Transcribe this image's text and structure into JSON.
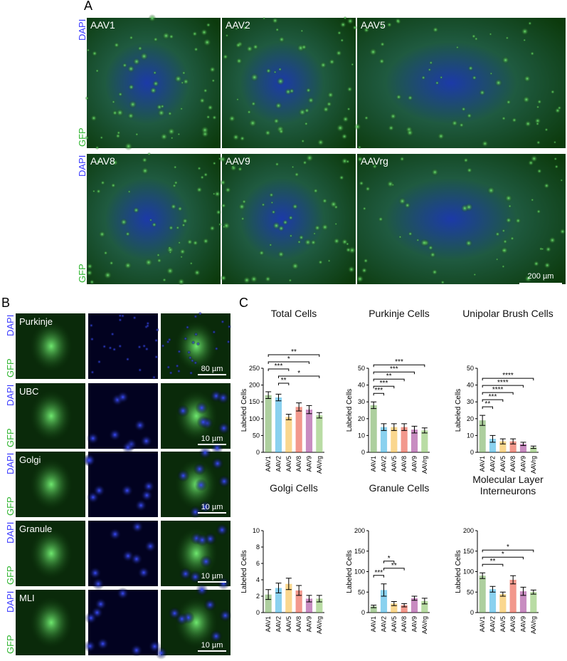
{
  "panel_labels": {
    "a": "A",
    "b": "B",
    "c": "C"
  },
  "panel_a": {
    "stain_labels": [
      "DAPI",
      "GFP"
    ],
    "images": [
      "AAV1",
      "AAV2",
      "AAV5",
      "AAV8",
      "AAV9",
      "AAVrg"
    ],
    "scale_bar": "200 µm"
  },
  "panel_b": {
    "stain_labels": [
      "DAPI",
      "GFP"
    ],
    "rows": [
      {
        "label": "Purkinje",
        "scale_bar": "80 µm"
      },
      {
        "label": "UBC",
        "scale_bar": "10 µm"
      },
      {
        "label": "Golgi",
        "scale_bar": "10 µm"
      },
      {
        "label": "Granule",
        "scale_bar": "10 µm"
      },
      {
        "label": "MLI",
        "scale_bar": "10 µm"
      }
    ]
  },
  "chart_data": [
    {
      "type": "bar",
      "title": "Total Cells",
      "y_label": "Labeled Cells",
      "categories": [
        "AAV1",
        "AAV2",
        "AAV5",
        "AAV8",
        "AAV9",
        "AAVrg"
      ],
      "colors": [
        "#6aa84f",
        "#29abe2",
        "#f5b731",
        "#e8432e",
        "#9b2d8e",
        "#7fbf5a"
      ],
      "values": [
        170,
        163,
        105,
        135,
        127,
        110
      ],
      "errors": [
        10,
        10,
        8,
        12,
        12,
        8
      ],
      "ylim": [
        0,
        250
      ],
      "yticks": [
        0,
        50,
        100,
        150,
        200,
        250
      ],
      "significance": [
        {
          "pair": [
            1,
            2
          ],
          "label": "**"
        },
        {
          "pair": [
            1,
            5
          ],
          "label": "*"
        },
        {
          "pair": [
            0,
            2
          ],
          "label": "***"
        },
        {
          "pair": [
            0,
            4
          ],
          "label": "*"
        },
        {
          "pair": [
            0,
            5
          ],
          "label": "**"
        }
      ]
    },
    {
      "type": "bar",
      "title": "Purkinje Cells",
      "y_label": "Labeled Cells",
      "categories": [
        "AAV1",
        "AAV2",
        "AAV5",
        "AAV8",
        "AAV9",
        "AAVrg"
      ],
      "colors": [
        "#6aa84f",
        "#29abe2",
        "#f5b731",
        "#e8432e",
        "#9b2d8e",
        "#7fbf5a"
      ],
      "values": [
        28,
        15,
        15,
        15,
        13.5,
        13
      ],
      "errors": [
        2,
        2,
        2,
        2,
        2,
        1.5
      ],
      "ylim": [
        0,
        50
      ],
      "yticks": [
        0,
        10,
        20,
        30,
        40,
        50
      ],
      "significance": [
        {
          "pair": [
            0,
            1
          ],
          "label": "***"
        },
        {
          "pair": [
            0,
            2
          ],
          "label": "***"
        },
        {
          "pair": [
            0,
            3
          ],
          "label": "**"
        },
        {
          "pair": [
            0,
            4
          ],
          "label": "***"
        },
        {
          "pair": [
            0,
            5
          ],
          "label": "***"
        }
      ]
    },
    {
      "type": "bar",
      "title": "Unipolar Brush Cells",
      "y_label": "Labeled Cells",
      "categories": [
        "AAV1",
        "AAV2",
        "AAV5",
        "AAV8",
        "AAV9",
        "AAVrg"
      ],
      "colors": [
        "#6aa84f",
        "#29abe2",
        "#f5b731",
        "#e8432e",
        "#9b2d8e",
        "#7fbf5a"
      ],
      "values": [
        19,
        8,
        6.5,
        6.5,
        5,
        3
      ],
      "errors": [
        3,
        2,
        1.5,
        1.5,
        1,
        0.7
      ],
      "ylim": [
        0,
        50
      ],
      "yticks": [
        0,
        10,
        20,
        30,
        40,
        50
      ],
      "significance": [
        {
          "pair": [
            0,
            1
          ],
          "label": "**"
        },
        {
          "pair": [
            0,
            2
          ],
          "label": "***"
        },
        {
          "pair": [
            0,
            3
          ],
          "label": "****"
        },
        {
          "pair": [
            0,
            4
          ],
          "label": "****"
        },
        {
          "pair": [
            0,
            5
          ],
          "label": "****"
        }
      ]
    },
    {
      "type": "bar",
      "title": "Golgi Cells",
      "y_label": "Labeled Cells",
      "categories": [
        "AAV1",
        "AAV2",
        "AAV5",
        "AAV8",
        "AAV9",
        "AAVrg"
      ],
      "colors": [
        "#6aa84f",
        "#29abe2",
        "#f5b731",
        "#e8432e",
        "#9b2d8e",
        "#7fbf5a"
      ],
      "values": [
        2.2,
        3,
        3.5,
        2.7,
        1.7,
        1.7
      ],
      "errors": [
        0.6,
        0.6,
        0.7,
        0.6,
        0.4,
        0.4
      ],
      "ylim": [
        0,
        10
      ],
      "yticks": [
        0,
        2,
        4,
        6,
        8,
        10
      ],
      "significance": []
    },
    {
      "type": "bar",
      "title": "Granule Cells",
      "y_label": "Labeled Cells",
      "categories": [
        "AAV1",
        "AAV2",
        "AAV5",
        "AAV8",
        "AAV9",
        "AAVrg"
      ],
      "colors": [
        "#6aa84f",
        "#29abe2",
        "#f5b731",
        "#e8432e",
        "#9b2d8e",
        "#7fbf5a"
      ],
      "values": [
        15,
        55,
        22,
        18,
        35,
        28
      ],
      "errors": [
        3,
        15,
        5,
        4,
        5,
        7
      ],
      "ylim": [
        0,
        200
      ],
      "yticks": [
        0,
        50,
        100,
        150,
        200
      ],
      "significance": [
        {
          "pair": [
            0,
            1
          ],
          "label": "***"
        },
        {
          "pair": [
            1,
            3
          ],
          "label": "**"
        },
        {
          "pair": [
            1,
            2
          ],
          "label": "*"
        }
      ]
    },
    {
      "type": "bar",
      "title": "Molecular Layer Interneurons",
      "y_label": "Labeled Cells",
      "categories": [
        "AAV1",
        "AAV2",
        "AAV5",
        "AAV8",
        "AAV9",
        "AAVrg"
      ],
      "colors": [
        "#6aa84f",
        "#29abe2",
        "#f5b731",
        "#e8432e",
        "#9b2d8e",
        "#7fbf5a"
      ],
      "values": [
        90,
        57,
        45,
        80,
        52,
        50
      ],
      "errors": [
        7,
        7,
        5,
        10,
        10,
        5
      ],
      "ylim": [
        0,
        200
      ],
      "yticks": [
        0,
        50,
        100,
        150,
        200
      ],
      "significance": [
        {
          "pair": [
            0,
            2
          ],
          "label": "**"
        },
        {
          "pair": [
            0,
            4
          ],
          "label": "*"
        },
        {
          "pair": [
            0,
            5
          ],
          "label": "*"
        }
      ]
    }
  ]
}
